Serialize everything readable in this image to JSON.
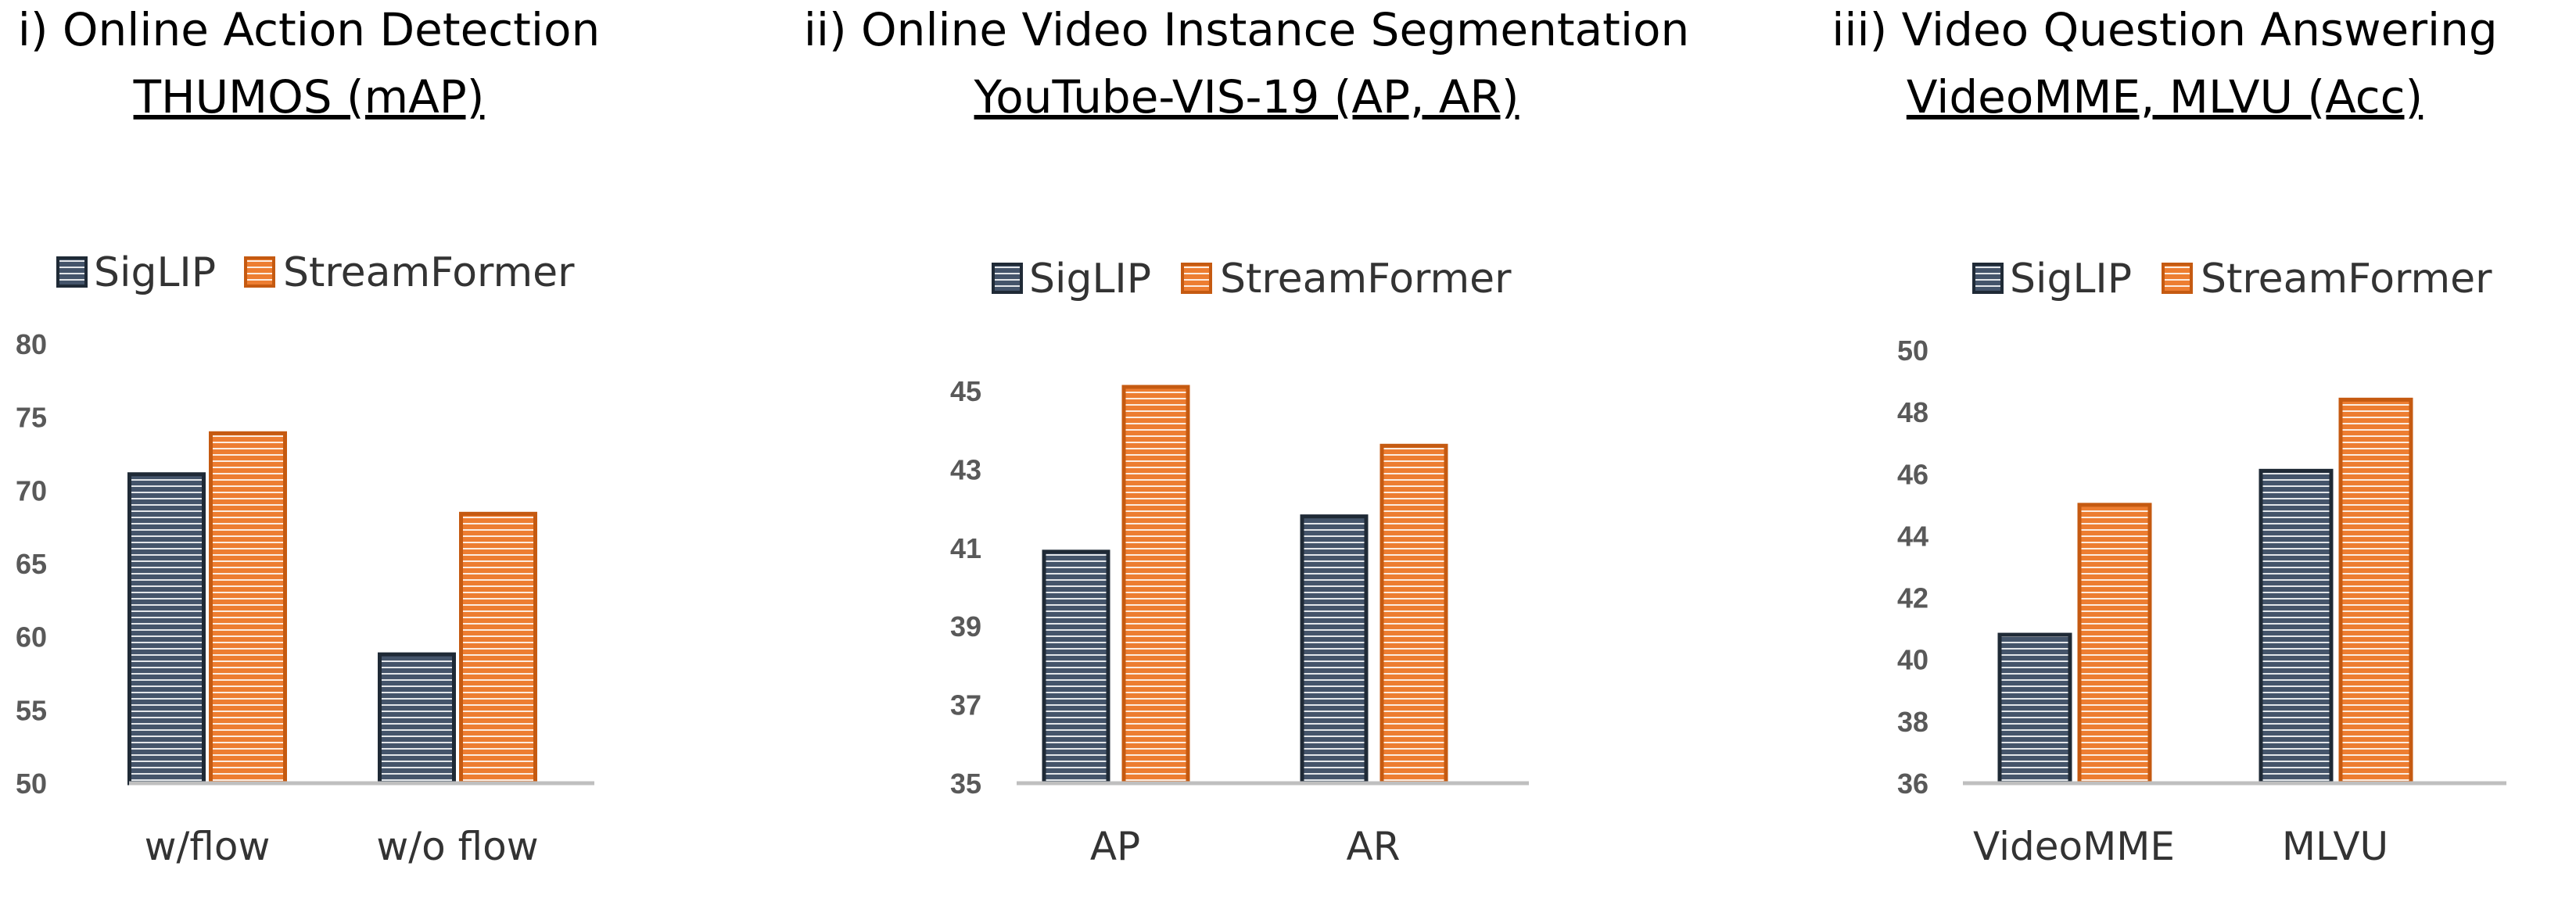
{
  "colors": {
    "sigclip_fill": "#44546a",
    "sigclip_stroke": "#1f2a36",
    "streamformer_fill": "#ed7d31",
    "streamformer_stroke": "#c55a11",
    "axis": "#bfbfbf"
  },
  "chart_data": [
    {
      "type": "bar",
      "title": "i) Online Action Detection",
      "subtitle": "THUMOS (mAP)",
      "categories": [
        "w/flow",
        "w/o flow"
      ],
      "series": [
        {
          "name": "SigLIP",
          "values": [
            71.1,
            58.8
          ]
        },
        {
          "name": "StreamFormer",
          "values": [
            73.9,
            68.4
          ]
        }
      ],
      "yticks": [
        "80",
        "75",
        "70",
        "65",
        "60",
        "55",
        "50"
      ],
      "ylim": [
        50,
        80
      ],
      "legend_position": "top-left",
      "grid": false
    },
    {
      "type": "bar",
      "title": "ii) Online Video Instance Segmentation",
      "subtitle": "YouTube-VIS-19 (AP, AR)",
      "categories": [
        "AP",
        "AR"
      ],
      "series": [
        {
          "name": "SigLIP",
          "values": [
            40.9,
            41.8
          ]
        },
        {
          "name": "StreamFormer",
          "values": [
            45.1,
            43.6
          ]
        }
      ],
      "yticks": [
        "45",
        "43",
        "41",
        "39",
        "37",
        "35"
      ],
      "ylim": [
        35,
        45
      ],
      "legend_position": "top-center",
      "grid": false
    },
    {
      "type": "bar",
      "title": "iii) Video Question Answering",
      "subtitle": "VideoMME, MLVU (Acc)",
      "categories": [
        "VideoMME",
        "MLVU"
      ],
      "series": [
        {
          "name": "SigLIP",
          "values": [
            40.8,
            46.1
          ]
        },
        {
          "name": "StreamFormer",
          "values": [
            45.0,
            48.4
          ]
        }
      ],
      "yticks": [
        "50",
        "48",
        "46",
        "44",
        "42",
        "40",
        "38",
        "36"
      ],
      "ylim": [
        36,
        50
      ],
      "legend_position": "top-center",
      "grid": false
    }
  ]
}
